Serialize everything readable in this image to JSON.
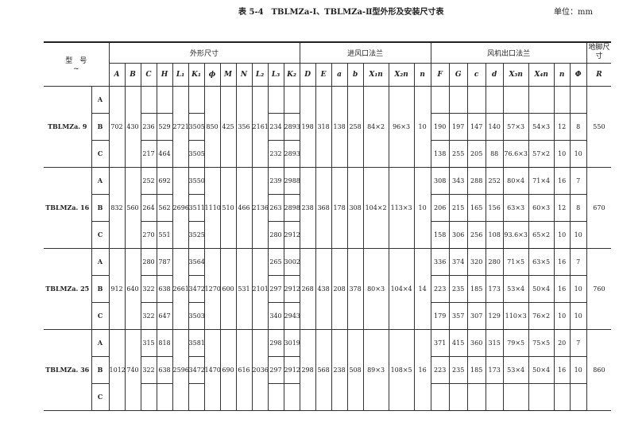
{
  "title": "表 5-4　TBLMZa-Ⅰ、TBLMZa-Ⅱ型外形及安装尺寸表",
  "unit": "单位：mm",
  "header": {
    "model": "型　号",
    "model_sub": "~",
    "group_outline": "外形尺寸",
    "group_inlet": "进风口法兰",
    "group_outlet": "风机出口法兰",
    "group_foot": "地脚尺寸",
    "outline_cols": [
      "A",
      "B",
      "C",
      "H",
      "L₁",
      "K₁",
      "ϕ",
      "M",
      "N",
      "L₂",
      "L₃",
      "K₂"
    ],
    "inlet_cols": [
      "D",
      "E",
      "a",
      "b",
      "X₁n",
      "X₂n",
      "n"
    ],
    "outlet_cols": [
      "F",
      "G",
      "c",
      "d",
      "X₃n",
      "X₄n",
      "n",
      "Φ"
    ],
    "foot_cols": [
      "R"
    ]
  },
  "groups": [
    {
      "model": "TBLMZa. 9",
      "shared": {
        "A": "702",
        "B": "430",
        "L1": "2721",
        "phi": "850",
        "M": "425",
        "N": "356",
        "L2": "2161",
        "D": "198",
        "E": "318",
        "a": "138",
        "b": "258",
        "X1n": "84×2",
        "X2n": "96×3",
        "n_in": "10",
        "R": "550"
      },
      "rows": [
        {
          "sub": "A",
          "C": "",
          "H": "",
          "K1": "",
          "L3": "",
          "K2": "",
          "F": "",
          "G": "",
          "c": "",
          "d": "",
          "X3n": "",
          "X4n": "",
          "n_out": "",
          "Phi": ""
        },
        {
          "sub": "B",
          "C": "236",
          "H": "529",
          "K1": "3505",
          "L3": "234",
          "K2": "2893",
          "F": "190",
          "G": "197",
          "c": "147",
          "d": "140",
          "X3n": "57×3",
          "X4n": "54×3",
          "n_out": "12",
          "Phi": "8"
        },
        {
          "sub": "C",
          "C": "217",
          "H": "464",
          "K1": "3505",
          "L3": "232",
          "K2": "2893",
          "F": "138",
          "G": "255",
          "c": "205",
          "d": "88",
          "X3n": "76.6×3",
          "X4n": "57×2",
          "n_out": "10",
          "Phi": "10"
        }
      ]
    },
    {
      "model": "TBLMZa. 16",
      "shared": {
        "A": "832",
        "B": "560",
        "L1": "2696",
        "phi": "1110",
        "M": "510",
        "N": "466",
        "L2": "2136",
        "D": "238",
        "E": "368",
        "a": "178",
        "b": "308",
        "X1n": "104×2",
        "X2n": "113×3",
        "n_in": "10",
        "R": "670"
      },
      "rows": [
        {
          "sub": "A",
          "C": "252",
          "H": "692",
          "K1": "3550",
          "L3": "239",
          "K2": "2988",
          "F": "308",
          "G": "343",
          "c": "288",
          "d": "252",
          "X3n": "80×4",
          "X4n": "71×4",
          "n_out": "16",
          "Phi": "7"
        },
        {
          "sub": "B",
          "C": "264",
          "H": "562",
          "K1": "3511",
          "L3": "263",
          "K2": "2898",
          "F": "206",
          "G": "215",
          "c": "165",
          "d": "156",
          "X3n": "63×3",
          "X4n": "60×3",
          "n_out": "12",
          "Phi": "8"
        },
        {
          "sub": "C",
          "C": "270",
          "H": "551",
          "K1": "3525",
          "L3": "280",
          "K2": "2912",
          "F": "158",
          "G": "306",
          "c": "256",
          "d": "108",
          "X3n": "93.6×3",
          "X4n": "65×2",
          "n_out": "10",
          "Phi": "10"
        }
      ]
    },
    {
      "model": "TBLMZa. 25",
      "shared": {
        "A": "912",
        "B": "640",
        "L1": "2661",
        "phi": "1270",
        "M": "600",
        "N": "531",
        "L2": "2101",
        "D": "268",
        "E": "438",
        "a": "208",
        "b": "378",
        "X1n": "80×3",
        "X2n": "104×4",
        "n_in": "14",
        "R": "760"
      },
      "rows": [
        {
          "sub": "A",
          "C": "280",
          "H": "787",
          "K1": "3564",
          "L3": "265",
          "K2": "3002",
          "F": "336",
          "G": "374",
          "c": "320",
          "d": "280",
          "X3n": "71×5",
          "X4n": "63×5",
          "n_out": "16",
          "Phi": "7"
        },
        {
          "sub": "B",
          "C": "322",
          "H": "638",
          "K1": "3472",
          "L3": "297",
          "K2": "2912",
          "F": "223",
          "G": "235",
          "c": "185",
          "d": "173",
          "X3n": "53×4",
          "X4n": "50×4",
          "n_out": "16",
          "Phi": "10"
        },
        {
          "sub": "C",
          "C": "322",
          "H": "647",
          "K1": "3503",
          "L3": "340",
          "K2": "2943",
          "F": "179",
          "G": "357",
          "c": "307",
          "d": "129",
          "X3n": "110×3",
          "X4n": "76×2",
          "n_out": "10",
          "Phi": "10"
        }
      ]
    },
    {
      "model": "TBLMZa. 36",
      "shared": {
        "A": "1012",
        "B": "740",
        "L1": "2596",
        "phi": "1470",
        "M": "690",
        "N": "616",
        "L2": "2036",
        "D": "298",
        "E": "568",
        "a": "238",
        "b": "508",
        "X1n": "89×3",
        "X2n": "108×5",
        "n_in": "16",
        "R": "860"
      },
      "rows": [
        {
          "sub": "A",
          "C": "315",
          "H": "818",
          "K1": "3581",
          "L3": "298",
          "K2": "3019",
          "F": "371",
          "G": "415",
          "c": "360",
          "d": "315",
          "X3n": "79×5",
          "X4n": "75×5",
          "n_out": "20",
          "Phi": "7"
        },
        {
          "sub": "B",
          "C": "322",
          "H": "638",
          "K1": "3472",
          "L3": "297",
          "K2": "2912",
          "F": "223",
          "G": "235",
          "c": "185",
          "d": "173",
          "X3n": "53×4",
          "X4n": "50×4",
          "n_out": "16",
          "Phi": "10"
        },
        {
          "sub": "C",
          "C": "",
          "H": "",
          "K1": "",
          "L3": "",
          "K2": "",
          "F": "",
          "G": "",
          "c": "",
          "d": "",
          "X3n": "",
          "X4n": "",
          "n_out": "",
          "Phi": ""
        }
      ]
    }
  ]
}
